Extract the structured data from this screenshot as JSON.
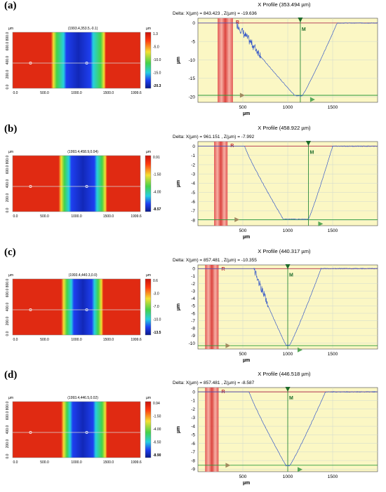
{
  "figure": {
    "panels": [
      {
        "label": "(a)",
        "map": {
          "unit_y": "µm",
          "unit_bar": "µm",
          "coords": "(1993.4,353.5,-0.1)",
          "x_ticks": [
            "0.0",
            "500.0",
            "1000.0",
            "1500.0",
            "1999.6"
          ],
          "y_ticks": [
            "0.0",
            "200.0",
            "400.0",
            "600.0",
            "800.0"
          ],
          "scale_ticks": [
            "1.3",
            "-5.0",
            "-10.0",
            "-15.0",
            "-20.3"
          ],
          "scale_min": -20.3,
          "colors": {
            "outer": "#e02a12",
            "green": "#44d24a",
            "cyan": "#26cfe0",
            "blue": "#1e3ff0",
            "core": "#1228b8"
          },
          "band": {
            "start": 0.3,
            "end": 0.73,
            "core_start": 0.42,
            "core_end": 0.61
          }
        },
        "profile": {
          "title": "X Profile (353.494 µm)",
          "delta": "Delta: X(µm) = 843.423 , Z(µm) = -19.636",
          "x_ticks": [
            500,
            1000,
            1500
          ],
          "y_ticks": [
            0,
            -5,
            -10,
            -15,
            -20
          ],
          "x_label": "µm",
          "y_label": "µm",
          "xlim": [
            0,
            2000
          ],
          "ylim": [
            -21.5,
            1.3
          ],
          "R_label": "R",
          "M_label": "M",
          "R_band": [
            220,
            390
          ],
          "M_x": 1140,
          "baseline_z": -19.6,
          "top_z": 0,
          "curve": {
            "start": 420,
            "min_start": 1080,
            "min_end": 1160,
            "end": 1550,
            "min": -19.7,
            "noisy_until": 700
          }
        }
      },
      {
        "label": "(b)",
        "map": {
          "unit_y": "µm",
          "unit_bar": "µm",
          "coords": "(1993.4,458.9,0.04)",
          "x_ticks": [
            "0.0",
            "500.0",
            "1000.0",
            "1500.0",
            "1999.6"
          ],
          "y_ticks": [
            "0.0",
            "200.0",
            "400.0",
            "600.0",
            "800.0"
          ],
          "scale_ticks": [
            "0.91",
            "-1.50",
            "-4.00",
            "-8.57"
          ],
          "scale_min": -8.57,
          "colors": {
            "outer": "#e02a12",
            "green": "#44d24a",
            "cyan": "#26cfe0",
            "blue": "#1e3ff0",
            "core": "#1228b8"
          },
          "band": {
            "start": 0.36,
            "end": 0.74,
            "core_start": 0.46,
            "core_end": 0.64
          }
        },
        "profile": {
          "title": "X Profile (458.922 µm)",
          "delta": "Delta: X(µm) = 961.151 , Z(µm) = -7.992",
          "x_ticks": [
            500,
            1000,
            1500
          ],
          "y_ticks": [
            0,
            -1,
            -2,
            -3,
            -4,
            -5,
            -6,
            -7,
            -8
          ],
          "x_label": "µm",
          "y_label": "µm",
          "xlim": [
            0,
            2000
          ],
          "ylim": [
            -8.6,
            0.5
          ],
          "R_label": "R",
          "M_label": "M",
          "R_band": [
            180,
            330
          ],
          "M_x": 1230,
          "baseline_z": -7.95,
          "top_z": 0,
          "curve": {
            "start": 520,
            "min_start": 950,
            "min_end": 1230,
            "end": 1500,
            "min": -7.9,
            "noisy_until": 0
          }
        }
      },
      {
        "label": "(c)",
        "map": {
          "unit_y": "µm",
          "unit_bar": "µm",
          "coords": "(1993.4,440.3,0.0)",
          "x_ticks": [
            "0.0",
            "500.0",
            "1000.0",
            "1500.0",
            "1999.6"
          ],
          "y_ticks": [
            "0.0",
            "200.0",
            "400.0",
            "600.0",
            "800.0"
          ],
          "scale_ticks": [
            "0.6",
            "-3.0",
            "-7.0",
            "-10.0",
            "-13.5"
          ],
          "scale_min": -13.5,
          "colors": {
            "outer": "#e02a12",
            "green": "#44d24a",
            "cyan": "#26cfe0",
            "blue": "#1e3ff0",
            "core": "#1228b8"
          },
          "band": {
            "start": 0.38,
            "end": 0.71,
            "core_start": 0.48,
            "core_end": 0.62
          }
        },
        "profile": {
          "title": "X Profile (440.317 µm)",
          "delta": "Delta: X(µm) = 857.481 , Z(µm) = -10.355",
          "x_ticks": [
            500,
            1000,
            1500
          ],
          "y_ticks": [
            0,
            -1,
            -2,
            -3,
            -4,
            -5,
            -6,
            -7,
            -8,
            -9,
            -10
          ],
          "x_label": "µm",
          "y_label": "µm",
          "xlim": [
            0,
            2000
          ],
          "ylim": [
            -10.8,
            0.5
          ],
          "R_label": "R",
          "M_label": "M",
          "R_band": [
            80,
            230
          ],
          "M_x": 1000,
          "baseline_z": -10.35,
          "top_z": 0,
          "curve": {
            "start": 620,
            "min_start": 980,
            "min_end": 1020,
            "end": 1370,
            "min": -10.3,
            "noisy_until": 780
          }
        }
      },
      {
        "label": "(d)",
        "map": {
          "unit_y": "µm",
          "unit_bar": "µm",
          "coords": "(1993.4,446.5,0.02)",
          "x_ticks": [
            "0.0",
            "500.0",
            "1000.0",
            "1500.0",
            "1999.6"
          ],
          "y_ticks": [
            "0.0",
            "200.0",
            "400.0",
            "600.0",
            "800.0"
          ],
          "scale_ticks": [
            "0.94",
            "-1.50",
            "-4.00",
            "-6.50",
            "-8.90"
          ],
          "scale_min": -8.9,
          "colors": {
            "outer": "#e02a12",
            "green": "#44d24a",
            "cyan": "#26cfe0",
            "blue": "#1e3ff0",
            "core": "#1228b8"
          },
          "band": {
            "start": 0.38,
            "end": 0.74,
            "core_start": 0.47,
            "core_end": 0.63
          }
        },
        "profile": {
          "title": "X Profile (446.518 µm)",
          "delta": "Delta: X(µm) = 857.481 , Z(µm) = -8.587",
          "x_ticks": [
            500,
            1000,
            1500
          ],
          "y_ticks": [
            0,
            -1,
            -2,
            -3,
            -4,
            -5,
            -6,
            -7,
            -8,
            -9
          ],
          "x_label": "µm",
          "y_label": "µm",
          "xlim": [
            0,
            2000
          ],
          "ylim": [
            -9.3,
            0.5
          ],
          "R_label": "R",
          "M_label": "M",
          "R_band": [
            80,
            230
          ],
          "M_x": 1000,
          "baseline_z": -8.55,
          "top_z": 0,
          "curve": {
            "start": 570,
            "min_start": 980,
            "min_end": 1020,
            "end": 1420,
            "min": -8.6,
            "noisy_until": 0
          }
        }
      }
    ]
  }
}
